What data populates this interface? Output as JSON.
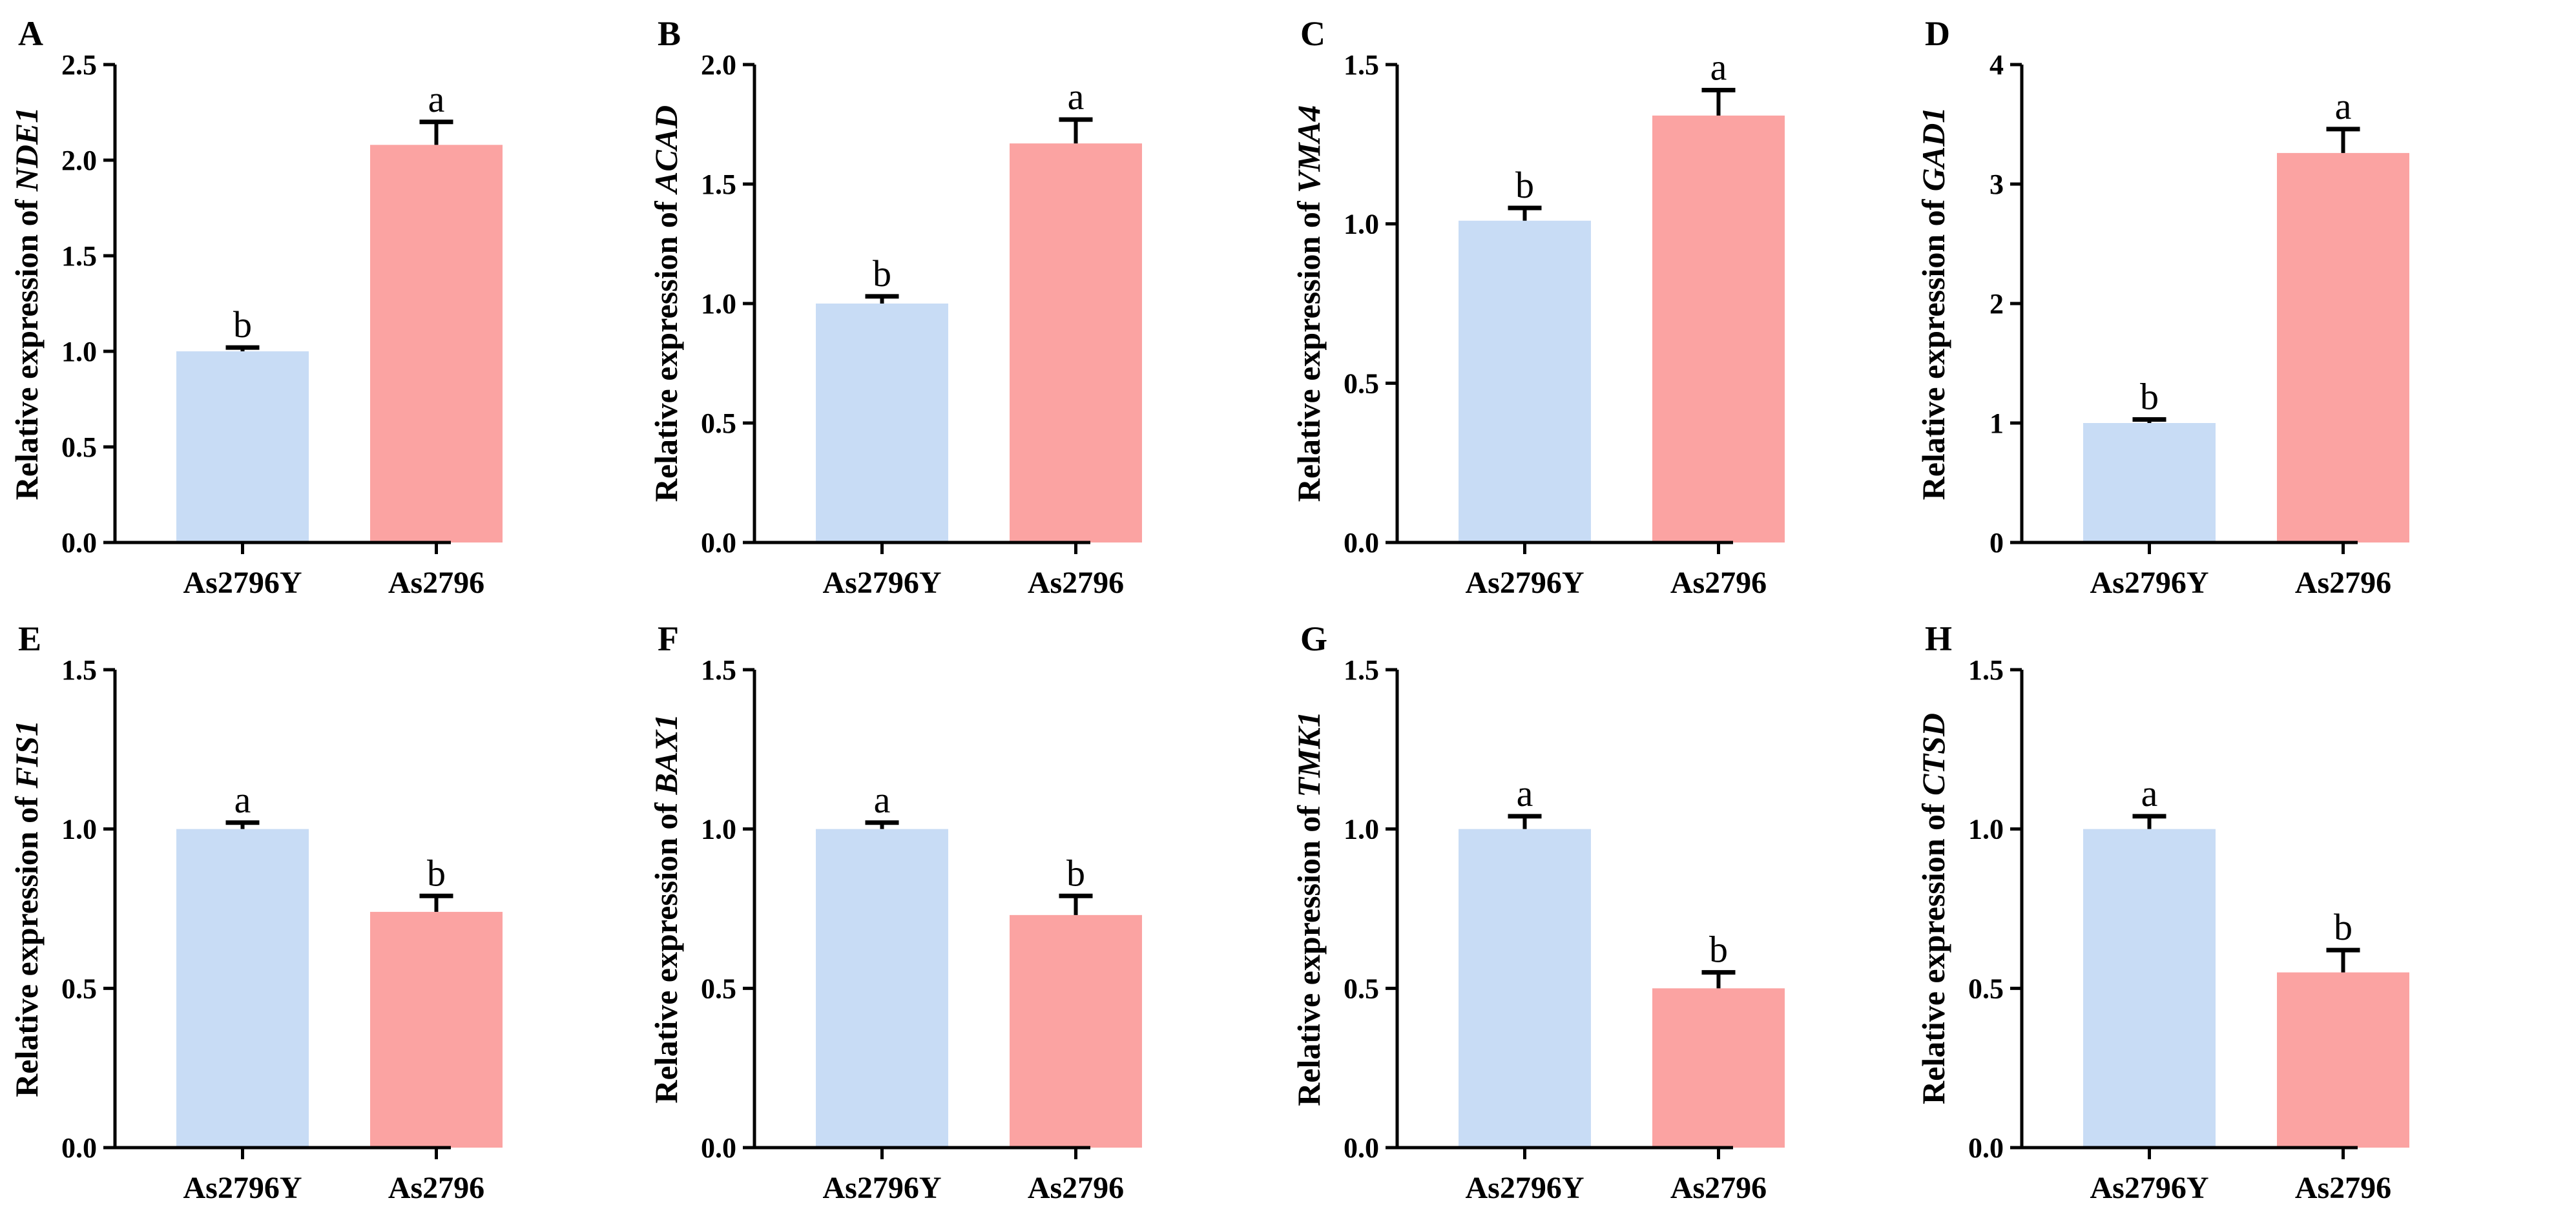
{
  "chart_data": [
    {
      "panel": "A",
      "type": "bar",
      "ylabel_prefix": "Relative expression of ",
      "gene": "NDE1",
      "categories": [
        "As2796Y",
        "As2796"
      ],
      "values": [
        1.0,
        2.08
      ],
      "errors": [
        0.02,
        0.12
      ],
      "letters": [
        "b",
        "a"
      ],
      "ylim": [
        0,
        2.5
      ],
      "yticks": [
        "0.0",
        "0.5",
        "1.0",
        "1.5",
        "2.0",
        "2.5"
      ]
    },
    {
      "panel": "B",
      "type": "bar",
      "ylabel_prefix": "Relative expression of ",
      "gene": "ACAD",
      "categories": [
        "As2796Y",
        "As2796"
      ],
      "values": [
        1.0,
        1.67
      ],
      "errors": [
        0.03,
        0.1
      ],
      "letters": [
        "b",
        "a"
      ],
      "ylim": [
        0,
        2.0
      ],
      "yticks": [
        "0.0",
        "0.5",
        "1.0",
        "1.5",
        "2.0"
      ]
    },
    {
      "panel": "C",
      "type": "bar",
      "ylabel_prefix": "Relative expression of ",
      "gene": "VMA4",
      "categories": [
        "As2796Y",
        "As2796"
      ],
      "values": [
        1.01,
        1.34
      ],
      "errors": [
        0.04,
        0.08
      ],
      "letters": [
        "b",
        "a"
      ],
      "ylim": [
        0,
        1.5
      ],
      "yticks": [
        "0.0",
        "0.5",
        "1.0",
        "1.5"
      ]
    },
    {
      "panel": "D",
      "type": "bar",
      "ylabel_prefix": "Relative expression of ",
      "gene": "GAD1",
      "categories": [
        "As2796Y",
        "As2796"
      ],
      "values": [
        1.0,
        3.26
      ],
      "errors": [
        0.03,
        0.2
      ],
      "letters": [
        "b",
        "a"
      ],
      "ylim": [
        0,
        4
      ],
      "yticks": [
        "0",
        "1",
        "2",
        "3",
        "4"
      ]
    },
    {
      "panel": "E",
      "type": "bar",
      "ylabel_prefix": "Relative expression of ",
      "gene": "FIS1",
      "categories": [
        "As2796Y",
        "As2796"
      ],
      "values": [
        1.0,
        0.74
      ],
      "errors": [
        0.02,
        0.05
      ],
      "letters": [
        "a",
        "b"
      ],
      "ylim": [
        0,
        1.5
      ],
      "yticks": [
        "0.0",
        "0.5",
        "1.0",
        "1.5"
      ]
    },
    {
      "panel": "F",
      "type": "bar",
      "ylabel_prefix": "Relative expression of ",
      "gene": "BAX1",
      "categories": [
        "As2796Y",
        "As2796"
      ],
      "values": [
        1.0,
        0.73
      ],
      "errors": [
        0.02,
        0.06
      ],
      "letters": [
        "a",
        "b"
      ],
      "ylim": [
        0,
        1.5
      ],
      "yticks": [
        "0.0",
        "0.5",
        "1.0",
        "1.5"
      ]
    },
    {
      "panel": "G",
      "type": "bar",
      "ylabel_prefix": "Relative expression of ",
      "gene": "TMK1",
      "categories": [
        "As2796Y",
        "As2796"
      ],
      "values": [
        1.0,
        0.5
      ],
      "errors": [
        0.04,
        0.05
      ],
      "letters": [
        "a",
        "b"
      ],
      "ylim": [
        0,
        1.5
      ],
      "yticks": [
        "0.0",
        "0.5",
        "1.0",
        "1.5"
      ]
    },
    {
      "panel": "H",
      "type": "bar",
      "ylabel_prefix": "Relative expression of ",
      "gene": "CTSD",
      "categories": [
        "As2796Y",
        "As2796"
      ],
      "values": [
        1.0,
        0.55
      ],
      "errors": [
        0.04,
        0.07
      ],
      "letters": [
        "a",
        "b"
      ],
      "ylim": [
        0,
        1.5
      ],
      "yticks": [
        "0.0",
        "0.5",
        "1.0",
        "1.5"
      ]
    }
  ],
  "colors": {
    "As2796Y": "#c8dcf5",
    "As2796": "#fba3a2",
    "axis": "#000000"
  }
}
